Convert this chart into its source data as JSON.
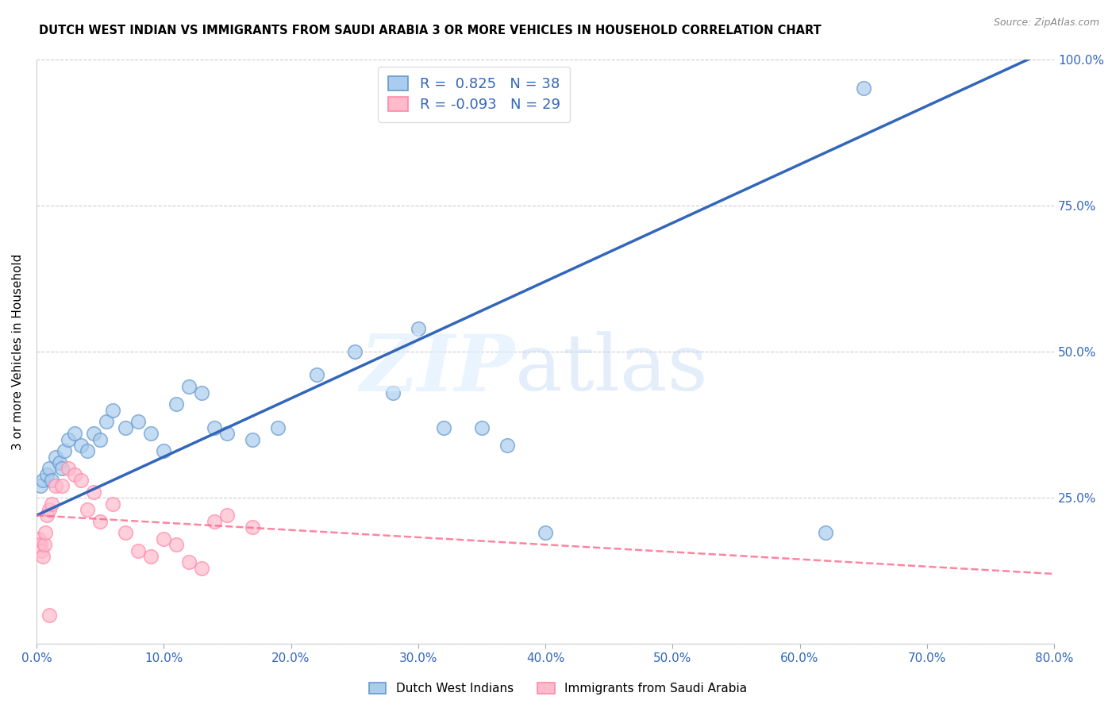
{
  "title": "DUTCH WEST INDIAN VS IMMIGRANTS FROM SAUDI ARABIA 3 OR MORE VEHICLES IN HOUSEHOLD CORRELATION CHART",
  "source": "Source: ZipAtlas.com",
  "ylabel": "3 or more Vehicles in Household",
  "xlabel_ticks": [
    "0.0%",
    "10.0%",
    "20.0%",
    "30.0%",
    "40.0%",
    "50.0%",
    "60.0%",
    "70.0%",
    "80.0%"
  ],
  "xlabel_vals": [
    0,
    10,
    20,
    30,
    40,
    50,
    60,
    70,
    80
  ],
  "ylabel_vals": [
    0,
    25,
    50,
    75,
    100
  ],
  "ylabel_ticks_right": [
    "",
    "25.0%",
    "50.0%",
    "75.0%",
    "100.0%"
  ],
  "xlim": [
    0,
    80
  ],
  "ylim": [
    0,
    100
  ],
  "blue_R": 0.825,
  "blue_N": 38,
  "pink_R": -0.093,
  "pink_N": 29,
  "blue_color": "#6699CC",
  "blue_face": "#aaccee",
  "pink_color": "#FF88AA",
  "pink_face": "#ffbbcc",
  "line_blue": "#3366BB",
  "line_pink": "#FF6688",
  "legend_blue_label": "Dutch West Indians",
  "legend_pink_label": "Immigrants from Saudi Arabia",
  "blue_line_x0": 0,
  "blue_line_y0": 22,
  "blue_line_x1": 80,
  "blue_line_y1": 102,
  "pink_line_x0": 0,
  "pink_line_y0": 22,
  "pink_line_x1": 80,
  "pink_line_y1": 12,
  "blue_scatter_x": [
    0.3,
    0.5,
    0.8,
    1.0,
    1.2,
    1.5,
    1.8,
    2.0,
    2.2,
    2.5,
    3.0,
    3.5,
    4.0,
    4.5,
    5.0,
    5.5,
    6.0,
    7.0,
    8.0,
    9.0,
    10.0,
    11.0,
    12.0,
    13.0,
    14.0,
    15.0,
    17.0,
    19.0,
    22.0,
    25.0,
    28.0,
    30.0,
    32.0,
    35.0,
    37.0,
    40.0,
    62.0,
    65.0
  ],
  "blue_scatter_y": [
    27,
    28,
    29,
    30,
    28,
    32,
    31,
    30,
    33,
    35,
    36,
    34,
    33,
    36,
    35,
    38,
    40,
    37,
    38,
    36,
    33,
    41,
    44,
    43,
    37,
    36,
    35,
    37,
    46,
    50,
    43,
    54,
    37,
    37,
    34,
    19,
    19,
    95
  ],
  "pink_scatter_x": [
    0.2,
    0.3,
    0.4,
    0.5,
    0.6,
    0.7,
    0.8,
    1.0,
    1.2,
    1.5,
    2.0,
    2.5,
    3.0,
    3.5,
    4.0,
    4.5,
    5.0,
    6.0,
    7.0,
    8.0,
    9.0,
    10.0,
    11.0,
    12.0,
    13.0,
    14.0,
    15.0,
    17.0,
    1.0
  ],
  "pink_scatter_y": [
    18,
    17,
    16,
    15,
    17,
    19,
    22,
    23,
    24,
    27,
    27,
    30,
    29,
    28,
    23,
    26,
    21,
    24,
    19,
    16,
    15,
    18,
    17,
    14,
    13,
    21,
    22,
    20,
    5
  ]
}
